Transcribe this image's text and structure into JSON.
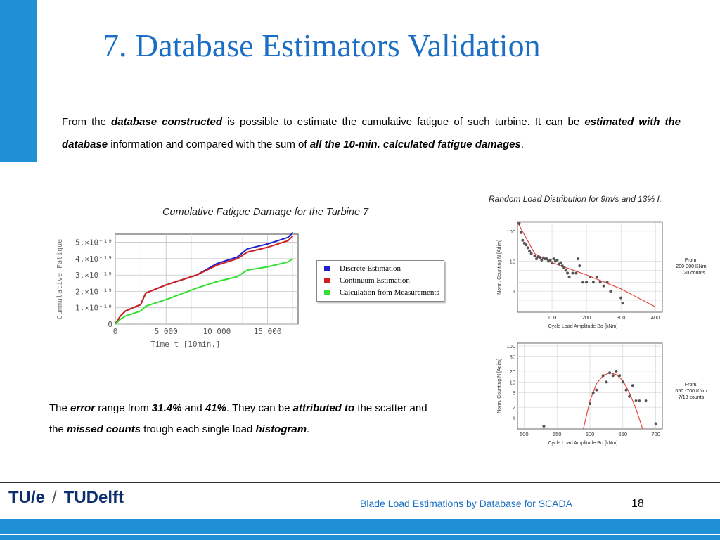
{
  "slide": {
    "title": "7. Database Estimators Validation",
    "page_number": "18",
    "footer_text": "Blade Load Estimations by Database for SCADA",
    "logo_text_tue": "TU/e",
    "logo_text_tudelft": "TUDelft"
  },
  "intro": {
    "p1": "From the ",
    "b1": "database constructed",
    "p2": " is possible to estimate the cumulative fatigue of such turbine. It can be ",
    "b2": "estimated with the database",
    "p3": " information and compared with the sum of ",
    "b3": "all the 10-min. calculated fatigue damages",
    "p4": "."
  },
  "lower": {
    "p1": "The ",
    "b1": "error",
    "p2": " range from ",
    "b2": "31.4%",
    "p3": " and ",
    "b3": "41%",
    "p4": ". They can be ",
    "b4": "attributed to",
    "p5": " the scatter and the ",
    "b5": "missed counts",
    "p6": " trough each single load ",
    "b6": "histogram",
    "p7": "."
  },
  "colors": {
    "accent": "#1f8fd6",
    "title": "#1a6fc4",
    "discrete": "#1f1fd0",
    "continuum": "#d01f1f",
    "measured": "#33e033",
    "fit": "#e8453c"
  },
  "chart_data": [
    {
      "type": "line",
      "title": "Cumulative Fatigue Damage for the Turbine 7",
      "xlabel": "Time  t  [10min.]",
      "ylabel": "Cummulative Fatigue",
      "xlim": [
        0,
        18000
      ],
      "ylim": [
        0,
        5.5e-19
      ],
      "xticks": [
        "0",
        "5 000",
        "10 000",
        "15 000"
      ],
      "yticks": [
        "0",
        "1.×10⁻¹⁹",
        "2.×10⁻¹⁹",
        "3.×10⁻¹⁹",
        "4.×10⁻¹⁹",
        "5.×10⁻¹⁹"
      ],
      "grid": true,
      "legend_position": "right",
      "series": [
        {
          "name": "Discrete Estimation",
          "x": [
            0,
            500,
            1000,
            2500,
            3000,
            5000,
            8000,
            10000,
            12000,
            13000,
            15000,
            17000,
            17500
          ],
          "y": [
            0,
            5e-20,
            8e-20,
            1.2e-19,
            1.9e-19,
            2.4e-19,
            3e-19,
            3.7e-19,
            4.1e-19,
            4.6e-19,
            4.9e-19,
            5.3e-19,
            5.6e-19
          ]
        },
        {
          "name": "Continuum Estimation",
          "x": [
            0,
            500,
            1000,
            2500,
            3000,
            5000,
            8000,
            10000,
            12000,
            13000,
            15000,
            17000,
            17500
          ],
          "y": [
            0,
            5e-20,
            8e-20,
            1.2e-19,
            1.9e-19,
            2.4e-19,
            3e-19,
            3.6e-19,
            4e-19,
            4.4e-19,
            4.7e-19,
            5.1e-19,
            5.4e-19
          ]
        },
        {
          "name": "Calculation from Measurements",
          "x": [
            0,
            500,
            1000,
            2500,
            3000,
            5000,
            8000,
            10000,
            12000,
            13000,
            15000,
            17000,
            17500
          ],
          "y": [
            0,
            3e-20,
            5e-20,
            8e-20,
            1.1e-19,
            1.5e-19,
            2.2e-19,
            2.6e-19,
            2.9e-19,
            3.3e-19,
            3.5e-19,
            3.8e-19,
            4e-19
          ]
        }
      ]
    },
    {
      "type": "scatter",
      "title": "Random Load Distribution for 9m/s and 13% I.",
      "xlabel": "Cycle Load Amplitude  Bσ  [kNm]",
      "ylabel": "Norm. Counting  N  [Adim]",
      "xlim": [
        0,
        420
      ],
      "ylim_log": [
        0.2,
        200
      ],
      "xticks": [
        "100",
        "200",
        "300",
        "400"
      ],
      "yticks": [
        "1",
        "10",
        "100"
      ],
      "annotation": "From:\n200-300 KNm\n11/20 counts",
      "points": [
        [
          5,
          180
        ],
        [
          10,
          90
        ],
        [
          15,
          50
        ],
        [
          20,
          40
        ],
        [
          25,
          35
        ],
        [
          30,
          28
        ],
        [
          35,
          22
        ],
        [
          40,
          18
        ],
        [
          50,
          15
        ],
        [
          55,
          12
        ],
        [
          60,
          14
        ],
        [
          65,
          13
        ],
        [
          70,
          11
        ],
        [
          75,
          13
        ],
        [
          80,
          12
        ],
        [
          85,
          12
        ],
        [
          90,
          10
        ],
        [
          95,
          11
        ],
        [
          100,
          9
        ],
        [
          105,
          12
        ],
        [
          110,
          10
        ],
        [
          115,
          11
        ],
        [
          120,
          8
        ],
        [
          125,
          9
        ],
        [
          130,
          7
        ],
        [
          135,
          6
        ],
        [
          140,
          5
        ],
        [
          145,
          4
        ],
        [
          150,
          3
        ],
        [
          160,
          4
        ],
        [
          170,
          4
        ],
        [
          175,
          12
        ],
        [
          180,
          7
        ],
        [
          190,
          2
        ],
        [
          200,
          2
        ],
        [
          210,
          3
        ],
        [
          220,
          2
        ],
        [
          230,
          3
        ],
        [
          240,
          2
        ],
        [
          250,
          1.5
        ],
        [
          260,
          2
        ],
        [
          270,
          1
        ],
        [
          300,
          0.6
        ],
        [
          305,
          0.4
        ]
      ],
      "fit": [
        [
          0,
          200
        ],
        [
          50,
          18
        ],
        [
          100,
          9
        ],
        [
          200,
          3.5
        ],
        [
          300,
          1.2
        ],
        [
          400,
          0.3
        ]
      ]
    },
    {
      "type": "scatter",
      "xlabel": "Cycle Load Amplitude  Bσ  [kNm]",
      "ylabel": "Norm. Counting  N  [Adim]",
      "xlim": [
        490,
        710
      ],
      "ylim_log": [
        0.5,
        120
      ],
      "xticks": [
        "500",
        "550",
        "600",
        "650",
        "700"
      ],
      "yticks": [
        "1",
        "2",
        "5",
        "10",
        "20",
        "50",
        "100"
      ],
      "annotation": "From:\n650 -700 KNm\n7/10 counts",
      "points": [
        [
          530,
          0.6
        ],
        [
          600,
          2.5
        ],
        [
          605,
          5
        ],
        [
          610,
          6
        ],
        [
          620,
          15
        ],
        [
          625,
          10
        ],
        [
          630,
          18
        ],
        [
          635,
          15
        ],
        [
          640,
          20
        ],
        [
          645,
          15
        ],
        [
          650,
          10
        ],
        [
          655,
          6
        ],
        [
          660,
          4
        ],
        [
          665,
          8
        ],
        [
          670,
          3
        ],
        [
          675,
          3
        ],
        [
          685,
          3
        ],
        [
          700,
          0.7
        ]
      ],
      "fit": [
        [
          590,
          0.5
        ],
        [
          600,
          3
        ],
        [
          610,
          9
        ],
        [
          620,
          15
        ],
        [
          630,
          18
        ],
        [
          640,
          16
        ],
        [
          650,
          11
        ],
        [
          660,
          5
        ],
        [
          670,
          1.8
        ],
        [
          680,
          0.5
        ]
      ]
    }
  ]
}
